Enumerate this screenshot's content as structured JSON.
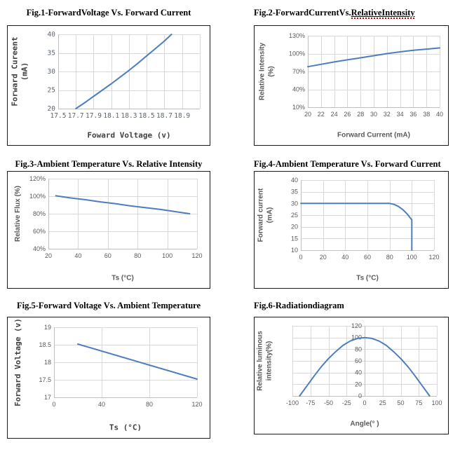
{
  "page": {
    "background": "#ffffff"
  },
  "colors": {
    "line": "#4e7dbf",
    "gridline": "#d9d9d9",
    "axis_line": "#bfbfbf",
    "tick_text": "#595959",
    "axis_title_gray": "#595959",
    "axis_title_dark": "#3f3f3f",
    "figure_title": "#000000",
    "chart_border": "#1a1a1a",
    "spellcheck_wavy": "#cc0000"
  },
  "chart_data": [
    {
      "type": "line",
      "title": "Fig.1-ForwardVoltage Vs. Forward Current",
      "xlabel": "Foward Voltage (v)",
      "ylabel": "Forward Cureent\n(mA)",
      "xlim": [
        17.5,
        19.1
      ],
      "ylim": [
        20,
        40
      ],
      "xticks": [
        17.5,
        17.7,
        17.9,
        18.1,
        18.3,
        18.5,
        18.7,
        18.9
      ],
      "xtick_labels": [
        "17.5",
        "17.7",
        "17.9",
        "18.1",
        "18.3",
        "18.5",
        "18.7",
        "18.9"
      ],
      "x_grid": [
        17.5,
        17.7,
        17.9,
        18.1,
        18.3,
        18.5,
        18.7,
        18.9,
        19.1
      ],
      "yticks": [
        20,
        25,
        30,
        35,
        40
      ],
      "ytick_labels": [
        "20",
        "25",
        "30",
        "35",
        "40"
      ],
      "grid": true,
      "legend": false,
      "points": [
        [
          17.7,
          20
        ],
        [
          17.8,
          21.6
        ],
        [
          17.9,
          23.3
        ],
        [
          18.0,
          25.0
        ],
        [
          18.1,
          26.7
        ],
        [
          18.2,
          28.5
        ],
        [
          18.3,
          30.3
        ],
        [
          18.4,
          32.2
        ],
        [
          18.5,
          34.2
        ],
        [
          18.6,
          36.2
        ],
        [
          18.7,
          38.2
        ],
        [
          18.78,
          40
        ]
      ],
      "layout": {
        "margins": {
          "l": 72,
          "r": 14,
          "t": 12,
          "b": 52
        },
        "ytitle_x": 17,
        "xtitle_b": 14
      }
    },
    {
      "type": "line",
      "title": "Fig.2-ForwardCurrentVs.RelativeIntensity",
      "title_prefix": "Fig.2-ForwardCurrentVs.",
      "title_underlined": "RelativeIntensity",
      "xlabel": "Forward Current (mA)",
      "ylabel": "Relative Intensity\n(%)",
      "xlim": [
        20,
        40
      ],
      "ylim": [
        10,
        130
      ],
      "xticks": [
        20,
        22,
        24,
        26,
        28,
        30,
        32,
        34,
        36,
        38,
        40
      ],
      "xtick_labels": [
        "20",
        "22",
        "24",
        "26",
        "28",
        "30",
        "32",
        "34",
        "36",
        "38",
        "40"
      ],
      "yticks": [
        10,
        40,
        70,
        100,
        130
      ],
      "ytick_labels": [
        "10%",
        "40%",
        "70%",
        "100%",
        "130%"
      ],
      "grid": true,
      "legend": false,
      "points": [
        [
          20,
          78
        ],
        [
          22,
          82
        ],
        [
          24,
          86
        ],
        [
          26,
          89.5
        ],
        [
          28,
          93
        ],
        [
          30,
          96.5
        ],
        [
          32,
          100
        ],
        [
          34,
          103
        ],
        [
          36,
          105.5
        ],
        [
          38,
          107.5
        ],
        [
          40,
          109.5
        ]
      ],
      "layout": {
        "margins": {
          "l": 76,
          "r": 12,
          "t": 14,
          "b": 54
        },
        "ytitle_x": 18,
        "xtitle_b": 14
      }
    },
    {
      "type": "line",
      "title": "Fig.3-Ambient Temperature Vs. Relative Intensity",
      "xlabel": "Ts (°C)",
      "ylabel": "Relative Flux (%)",
      "xlim": [
        20,
        120
      ],
      "ylim": [
        40,
        120
      ],
      "xticks": [
        20,
        40,
        60,
        80,
        100,
        120
      ],
      "xtick_labels": [
        "20",
        "40",
        "60",
        "80",
        "100",
        "120"
      ],
      "yticks": [
        40,
        60,
        80,
        100,
        120
      ],
      "ytick_labels": [
        "40%",
        "60%",
        "80%",
        "100%",
        "120%"
      ],
      "grid": true,
      "legend": false,
      "points": [
        [
          25,
          100.5
        ],
        [
          35,
          98
        ],
        [
          45,
          96
        ],
        [
          55,
          93.5
        ],
        [
          65,
          91.5
        ],
        [
          75,
          89
        ],
        [
          85,
          87
        ],
        [
          95,
          85
        ],
        [
          105,
          82.5
        ],
        [
          115,
          80
        ]
      ],
      "layout": {
        "margins": {
          "l": 58,
          "r": 18,
          "t": 10,
          "b": 56
        },
        "ytitle_x": 15,
        "xtitle_b": 14
      }
    },
    {
      "type": "line",
      "title": "Fig.4-Ambient Temperature Vs. Forward Current",
      "xlabel": "Ts (°C)",
      "ylabel": "Forward current\n(mA)",
      "xlim": [
        0,
        120
      ],
      "ylim": [
        10,
        40
      ],
      "xticks": [
        0,
        20,
        40,
        60,
        80,
        100,
        120
      ],
      "xtick_labels": [
        "0",
        "20",
        "40",
        "60",
        "80",
        "100",
        "120"
      ],
      "yticks": [
        10,
        15,
        20,
        25,
        30,
        35,
        40
      ],
      "ytick_labels": [
        "10",
        "15",
        "20",
        "25",
        "30",
        "35",
        "40"
      ],
      "grid": true,
      "legend": false,
      "points": [
        [
          0,
          30
        ],
        [
          80,
          30
        ],
        [
          84,
          29.6
        ],
        [
          88,
          28.7
        ],
        [
          92,
          27.3
        ],
        [
          96,
          25.4
        ],
        [
          100,
          23
        ],
        [
          100,
          10
        ]
      ],
      "layout": {
        "margins": {
          "l": 66,
          "r": 20,
          "t": 12,
          "b": 54
        },
        "ytitle_x": 16,
        "xtitle_b": 14
      }
    },
    {
      "type": "line",
      "title": "Fig.5-Forward Voltage Vs. Ambient Temperature",
      "xlabel": "Ts (°C)",
      "ylabel": "Forward Voltage (v)",
      "xlim": [
        0,
        120
      ],
      "ylim": [
        17,
        19
      ],
      "xticks": [
        0,
        40,
        80,
        120
      ],
      "xtick_labels": [
        "0",
        "40",
        "80",
        "120"
      ],
      "yticks": [
        17,
        17.5,
        18,
        18.5,
        19
      ],
      "ytick_labels": [
        "17",
        "17.5",
        "18",
        "18.5",
        "19"
      ],
      "grid": true,
      "legend": false,
      "points": [
        [
          20,
          18.52
        ],
        [
          120,
          17.52
        ]
      ],
      "layout": {
        "margins": {
          "l": 66,
          "r": 18,
          "t": 14,
          "b": 58
        },
        "ytitle_x": 15,
        "xtitle_b": 15
      }
    },
    {
      "type": "line",
      "title": "Fig.6-Radiationdiagram",
      "xlabel": "Angle(° )",
      "ylabel": "Relative luminous\nintensity(%)",
      "xlim": [
        -100,
        100
      ],
      "ylim": [
        0,
        120
      ],
      "y_axis_at": 0,
      "xticks": [
        -100,
        -75,
        -50,
        -25,
        0,
        25,
        50,
        75,
        100
      ],
      "xtick_labels": [
        "-100",
        "-75",
        "-50",
        "-25",
        "0",
        "25",
        "50",
        "75",
        "100"
      ],
      "yticks": [
        0,
        20,
        40,
        60,
        80,
        100,
        120
      ],
      "ytick_labels": [
        "0",
        "20",
        "40",
        "60",
        "80",
        "100",
        "120"
      ],
      "grid": true,
      "legend": false,
      "points": [
        [
          -90,
          0
        ],
        [
          -80,
          17
        ],
        [
          -70,
          34
        ],
        [
          -60,
          50
        ],
        [
          -50,
          64
        ],
        [
          -40,
          76
        ],
        [
          -30,
          86.5
        ],
        [
          -20,
          94
        ],
        [
          -10,
          98.5
        ],
        [
          0,
          100
        ],
        [
          10,
          98.5
        ],
        [
          20,
          94
        ],
        [
          30,
          86.5
        ],
        [
          40,
          76
        ],
        [
          50,
          64
        ],
        [
          60,
          50
        ],
        [
          70,
          34
        ],
        [
          80,
          17
        ],
        [
          90,
          0
        ]
      ],
      "layout": {
        "margins": {
          "l": 54,
          "r": 16,
          "t": 12,
          "b": 54
        },
        "ytitle_x": 15,
        "xtitle_b": 14
      }
    }
  ]
}
